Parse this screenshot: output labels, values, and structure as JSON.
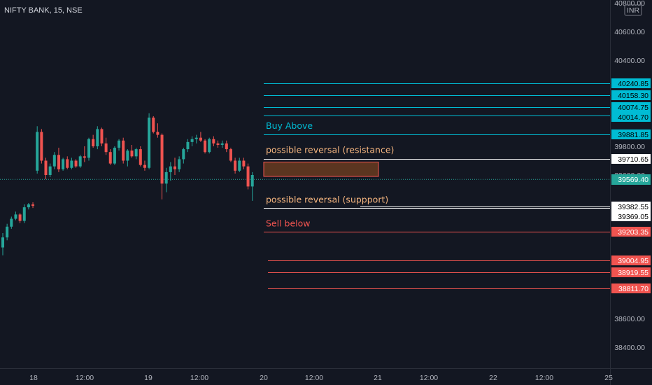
{
  "symbol_title": "NIFTY BANK, 15, NSE",
  "currency": "INR",
  "colors": {
    "background": "#131722",
    "up": "#26a69a",
    "down": "#ef5350",
    "cyan_level": "#00bcd4",
    "red_level": "#f05450",
    "white_level": "#ffffff",
    "annotation_orange": "#f5b57f",
    "current_price": "#26a69a"
  },
  "chart_data": {
    "type": "candlestick",
    "y_axis": {
      "range": [
        38300,
        40820
      ],
      "ticks": [
        {
          "value": 40800,
          "label": "40800.00"
        },
        {
          "value": 40600,
          "label": "40600.00"
        },
        {
          "value": 40400,
          "label": "40400.00"
        },
        {
          "value": 39800,
          "label": "39800.00"
        },
        {
          "value": 39600,
          "label": "39600.00"
        },
        {
          "value": 38600,
          "label": "38600.00"
        },
        {
          "value": 38400,
          "label": "38400.00"
        }
      ]
    },
    "x_axis": {
      "labels": [
        "18",
        "12:00",
        "19",
        "12:00",
        "20",
        "12:00",
        "21",
        "12:00",
        "22",
        "12:00",
        "25"
      ]
    },
    "current_price": 39569.4,
    "candles": [
      [
        39095,
        39195,
        39040,
        39165
      ],
      [
        39165,
        39260,
        39145,
        39240
      ],
      [
        39240,
        39310,
        39225,
        39295
      ],
      [
        39295,
        39345,
        39285,
        39325
      ],
      [
        39325,
        39335,
        39265,
        39280
      ],
      [
        39280,
        39395,
        39265,
        39375
      ],
      [
        39375,
        39405,
        39360,
        39395
      ],
      [
        39395,
        39410,
        39370,
        39385
      ],
      [
        39630,
        39940,
        39610,
        39900
      ],
      [
        39900,
        39920,
        39680,
        39700
      ],
      [
        39700,
        39720,
        39570,
        39600
      ],
      [
        39600,
        39680,
        39585,
        39660
      ],
      [
        39660,
        39760,
        39640,
        39740
      ],
      [
        39740,
        39790,
        39620,
        39640
      ],
      [
        39640,
        39720,
        39630,
        39710
      ],
      [
        39710,
        39730,
        39640,
        39650
      ],
      [
        39650,
        39720,
        39640,
        39700
      ],
      [
        39700,
        39710,
        39650,
        39660
      ],
      [
        39660,
        39740,
        39650,
        39730
      ],
      [
        39730,
        39800,
        39690,
        39720
      ],
      [
        39720,
        39860,
        39700,
        39850
      ],
      [
        39850,
        39880,
        39790,
        39800
      ],
      [
        39800,
        39940,
        39780,
        39920
      ],
      [
        39920,
        39930,
        39800,
        39820
      ],
      [
        39820,
        39860,
        39740,
        39760
      ],
      [
        39760,
        39780,
        39670,
        39680
      ],
      [
        39680,
        39800,
        39670,
        39790
      ],
      [
        39790,
        39850,
        39770,
        39840
      ],
      [
        39840,
        39860,
        39680,
        39700
      ],
      [
        39700,
        39780,
        39660,
        39770
      ],
      [
        39770,
        39810,
        39720,
        39730
      ],
      [
        39730,
        39790,
        39710,
        39780
      ],
      [
        39780,
        39800,
        39660,
        39670
      ],
      [
        39670,
        39700,
        39630,
        39650
      ],
      [
        39650,
        40030,
        39640,
        40000
      ],
      [
        40000,
        40010,
        39890,
        39900
      ],
      [
        39900,
        39960,
        39860,
        39880
      ],
      [
        39880,
        39890,
        39430,
        39540
      ],
      [
        39540,
        39650,
        39480,
        39620
      ],
      [
        39620,
        39690,
        39560,
        39660
      ],
      [
        39660,
        39720,
        39600,
        39640
      ],
      [
        39640,
        39730,
        39620,
        39710
      ],
      [
        39710,
        39790,
        39680,
        39780
      ],
      [
        39780,
        39850,
        39760,
        39830
      ],
      [
        39830,
        39870,
        39800,
        39850
      ],
      [
        39850,
        39880,
        39820,
        39860
      ],
      [
        39860,
        39900,
        39830,
        39840
      ],
      [
        39840,
        39850,
        39750,
        39760
      ],
      [
        39760,
        39860,
        39750,
        39850
      ],
      [
        39850,
        39870,
        39800,
        39820
      ],
      [
        39820,
        39840,
        39790,
        39810
      ],
      [
        39810,
        39840,
        39790,
        39820
      ],
      [
        39820,
        39840,
        39760,
        39780
      ],
      [
        39780,
        39790,
        39690,
        39700
      ],
      [
        39700,
        39720,
        39610,
        39630
      ],
      [
        39630,
        39720,
        39620,
        39700
      ],
      [
        39700,
        39720,
        39640,
        39660
      ],
      [
        39660,
        39680,
        39500,
        39520
      ],
      [
        39520,
        39620,
        39420,
        39600
      ]
    ],
    "levels": [
      {
        "name": "resistance-1",
        "price": 40240.85,
        "label": "40240.85",
        "color": "cyan"
      },
      {
        "name": "resistance-2",
        "price": 40158.3,
        "label": "40158.30",
        "color": "cyan"
      },
      {
        "name": "resistance-3",
        "price": 40074.75,
        "label": "40074.75",
        "color": "cyan"
      },
      {
        "name": "resistance-4",
        "price": 40014.7,
        "label": "40014.70",
        "color": "cyan"
      },
      {
        "name": "buy-above",
        "price": 39881.85,
        "label": "39881.85",
        "color": "cyan"
      },
      {
        "name": "reversal-resistance",
        "price": 39710.65,
        "label": "39710.65",
        "color": "white"
      },
      {
        "name": "reversal-support-1",
        "price": 39382.55,
        "label": "39382.55",
        "color": "white"
      },
      {
        "name": "reversal-support-2",
        "price": 39369.05,
        "label": "39369.05",
        "color": "white"
      },
      {
        "name": "sell-below",
        "price": 39203.35,
        "label": "39203.35",
        "color": "red"
      },
      {
        "name": "support-1",
        "price": 39004.95,
        "label": "39004.95",
        "color": "red"
      },
      {
        "name": "support-2",
        "price": 38919.55,
        "label": "38919.55",
        "color": "red"
      },
      {
        "name": "support-3",
        "price": 38811.7,
        "label": "38811.70",
        "color": "red"
      }
    ],
    "zone": {
      "from": 39690,
      "to": 39590
    },
    "annotations": [
      {
        "text": "Buy Above",
        "color": "cyan"
      },
      {
        "text": "possible reversal (resistance)",
        "color": "orange"
      },
      {
        "text": "possible reversal (suppport)",
        "color": "orange"
      },
      {
        "text": "Sell below",
        "color": "red"
      }
    ],
    "current_label": "39569.40"
  }
}
